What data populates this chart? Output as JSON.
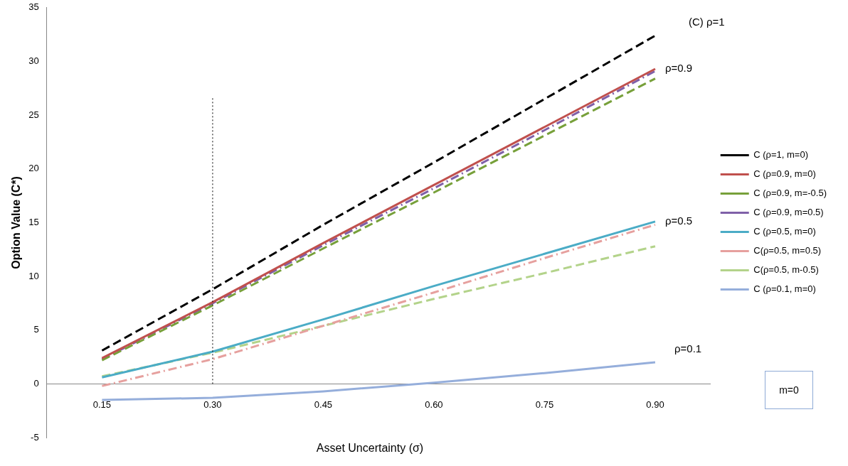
{
  "chart_data": {
    "type": "line",
    "xlabel": "Asset Uncertainty (σ)",
    "ylabel": "Option Value (C*)",
    "categories": [
      "0.15",
      "0.30",
      "0.45",
      "0.60",
      "0.75",
      "0.90"
    ],
    "ylim": [
      -5,
      35
    ],
    "yticks": [
      -5,
      0,
      5,
      10,
      15,
      20,
      25,
      30,
      35
    ],
    "grid": false,
    "legend": "right",
    "marker": "none",
    "series": [
      {
        "name": "C (ρ=1, m=0)",
        "color": "#000000",
        "line_style": "dashed",
        "values": [
          3.1,
          8.8,
          14.8,
          20.6,
          26.5,
          32.4
        ]
      },
      {
        "name": "C (ρ=0.9, m=0)",
        "color": "#c0504d",
        "line_style": "solid",
        "values": [
          2.4,
          7.6,
          13.1,
          18.5,
          23.9,
          29.3
        ]
      },
      {
        "name": "C (ρ=0.9, m=-0.5)",
        "color": "#77a03a",
        "line_style": "dashed",
        "values": [
          2.2,
          7.3,
          12.6,
          17.8,
          23.1,
          28.4
        ]
      },
      {
        "name": "C (ρ=0.9, m=0.5)",
        "color": "#7f60a8",
        "line_style": "dashdot",
        "values": [
          2.3,
          7.5,
          12.9,
          18.2,
          23.6,
          29.1
        ]
      },
      {
        "name": "C (ρ=0.5, m=0)",
        "color": "#4bacc6",
        "line_style": "solid",
        "values": [
          0.6,
          3.0,
          6.0,
          9.1,
          12.1,
          15.1
        ]
      },
      {
        "name": "C(ρ=0.5, m=0.5)",
        "color": "#e6a09e",
        "line_style": "dashdot",
        "values": [
          -0.2,
          2.3,
          5.4,
          8.5,
          11.7,
          14.8
        ]
      },
      {
        "name": "C(ρ=0.5, m-0.5)",
        "color": "#b3d38a",
        "line_style": "dashed",
        "values": [
          0.7,
          2.9,
          5.4,
          7.9,
          10.3,
          12.8
        ]
      },
      {
        "name": "C (ρ=0.1, m=0)",
        "color": "#95aedb",
        "line_style": "solid",
        "values": [
          -1.5,
          -1.3,
          -0.7,
          0.1,
          1.0,
          2.0
        ]
      }
    ],
    "ref_lines": [
      {
        "axis": "x",
        "value": "0.30",
        "color": "#000000",
        "line_style": "dotted"
      }
    ],
    "annotations": [
      "(C) ρ=1",
      {
        "text": "ρ=0.9",
        "x": "0.90",
        "y": 29.3
      },
      {
        "text": "ρ=0.5",
        "x": "0.90",
        "y": 15.1
      },
      "ρ=0.1",
      "m=0"
    ]
  }
}
